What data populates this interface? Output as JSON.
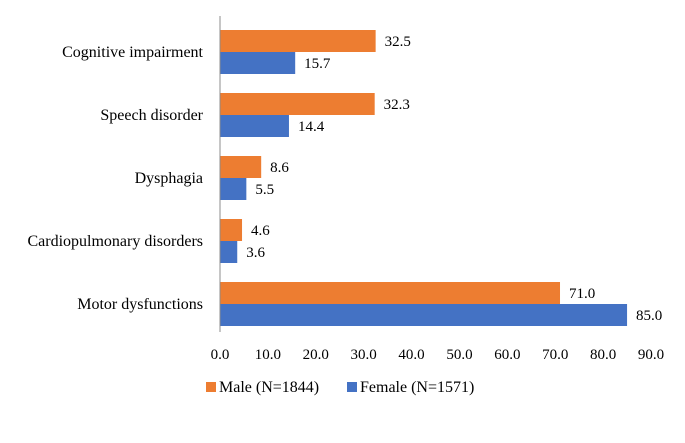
{
  "chart_data": {
    "type": "bar",
    "orientation": "horizontal",
    "categories": [
      "Cognitive impairment",
      "Speech disorder",
      "Dysphagia",
      "Cardiopulmonary disorders",
      "Motor dysfunctions"
    ],
    "series": [
      {
        "name": "Male (N=1844)",
        "color": "#ED7D31",
        "values": [
          32.5,
          32.3,
          8.6,
          4.6,
          71.0
        ],
        "labels": [
          "32.5",
          "32.3",
          "8.6",
          "4.6",
          "71.0"
        ]
      },
      {
        "name": "Female (N=1571)",
        "color": "#4472C4",
        "values": [
          15.7,
          14.4,
          5.5,
          3.6,
          85.0
        ],
        "labels": [
          "15.7",
          "14.4",
          "5.5",
          "3.6",
          "85.0"
        ]
      }
    ],
    "xlim": [
      0,
      90
    ],
    "xticks": [
      "0.0",
      "10.0",
      "20.0",
      "30.0",
      "40.0",
      "50.0",
      "60.0",
      "70.0",
      "80.0",
      "90.0"
    ],
    "title": "",
    "xlabel": "",
    "ylabel": "",
    "grid": false,
    "legend_position": "bottom"
  }
}
